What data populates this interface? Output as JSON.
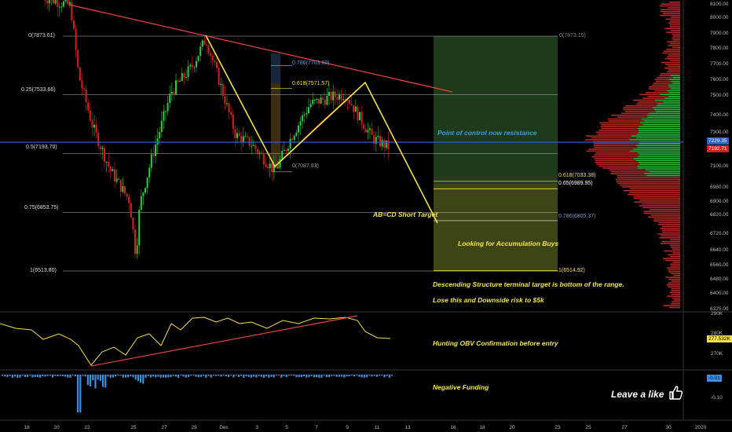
{
  "colors": {
    "background": "#000000",
    "bull": "#2ecc40",
    "bear": "#d62020",
    "yellow": "#f5e04a",
    "trend_red": "#e8453c",
    "blue_line": "#2a62c9",
    "fib_orange": "#e8b84a",
    "fib_blue": "#5aa0dc",
    "annotation_yellow": "#f2e64a",
    "annotation_blue": "#3f9be0",
    "funding_blue": "#3a8fe0",
    "zone_green": "#1d3a1b",
    "zone_olive": "#3d4516"
  },
  "fib_levels_left": [
    {
      "label": "0(7873.61)",
      "price": 7873.61
    },
    {
      "label": "0.25(7533.66)",
      "price": 7533.66
    },
    {
      "label": "0.5(7193.70)",
      "price": 7193.7
    },
    {
      "label": "0.75(6853.75)",
      "price": 6853.75
    },
    {
      "label": "1(6513.80)",
      "price": 6513.8
    }
  ],
  "fib_levels_right": [
    {
      "label": "0(7873.15)",
      "price": 7873.15,
      "color": "#888888"
    },
    {
      "label": "0.618(7033.38)",
      "price": 7033.38,
      "color": "#f5e04a"
    },
    {
      "label": "0.65(6989.95)",
      "price": 6989.95,
      "color": "#ffffff"
    },
    {
      "label": "0.786(6805.37)",
      "price": 6805.37,
      "color": "#5aa0dc"
    },
    {
      "label": "1(6514.92)",
      "price": 6514.92,
      "color": "#f5e04a"
    }
  ],
  "retracement_labels": [
    {
      "label": "0.786(7703.60)",
      "price": 7703.6,
      "color": "#5aa0dc"
    },
    {
      "label": "0.618(7571.57)",
      "price": 7571.57,
      "color": "#f5e04a"
    },
    {
      "label": "0(7087.83)",
      "price": 7087.83,
      "color": "#999999"
    }
  ],
  "annotations": {
    "poc": "Point of control now resistance",
    "abcd": "AB=CD Short Target",
    "accumulation": "Looking for Accumulation Buys",
    "descending": "Descending Structure terminal target is bottom of the range.",
    "lose": "Lose this and Downside risk to $5k",
    "obv": "Hunting OBV Confirmation before entry",
    "funding": "Negative Funding",
    "like": "Leave a like"
  },
  "price_axis": {
    "ticks": [
      "8100.00",
      "8000.00",
      "7900.00",
      "7800.00",
      "7700.00",
      "7600.00",
      "7500.00",
      "7400.00",
      "7300.00",
      "7200.00",
      "7100.00",
      "6980.00",
      "6900.00",
      "6820.00",
      "6720.00",
      "6640.00",
      "6560.00",
      "6480.00",
      "6400.00",
      "6325.00"
    ],
    "current_flags": [
      {
        "label": "7229.35",
        "bg": "#2a62c9",
        "fg": "#ffffff"
      },
      {
        "label": "7192.71",
        "bg": "#d62020",
        "fg": "#ffffff"
      }
    ]
  },
  "obv_axis": {
    "ticks": [
      "290K",
      "280K",
      "270K"
    ],
    "flag": "277.532K"
  },
  "funding_axis": {
    "ticks": [
      "-0.10"
    ],
    "flag": "-0.01"
  },
  "time_axis": [
    "18",
    "20",
    "22",
    "25",
    "27",
    "29",
    "Dec",
    "3",
    "5",
    "7",
    "9",
    "11",
    "13",
    "16",
    "18",
    "20",
    "23",
    "25",
    "27",
    "30",
    "2020"
  ]
}
